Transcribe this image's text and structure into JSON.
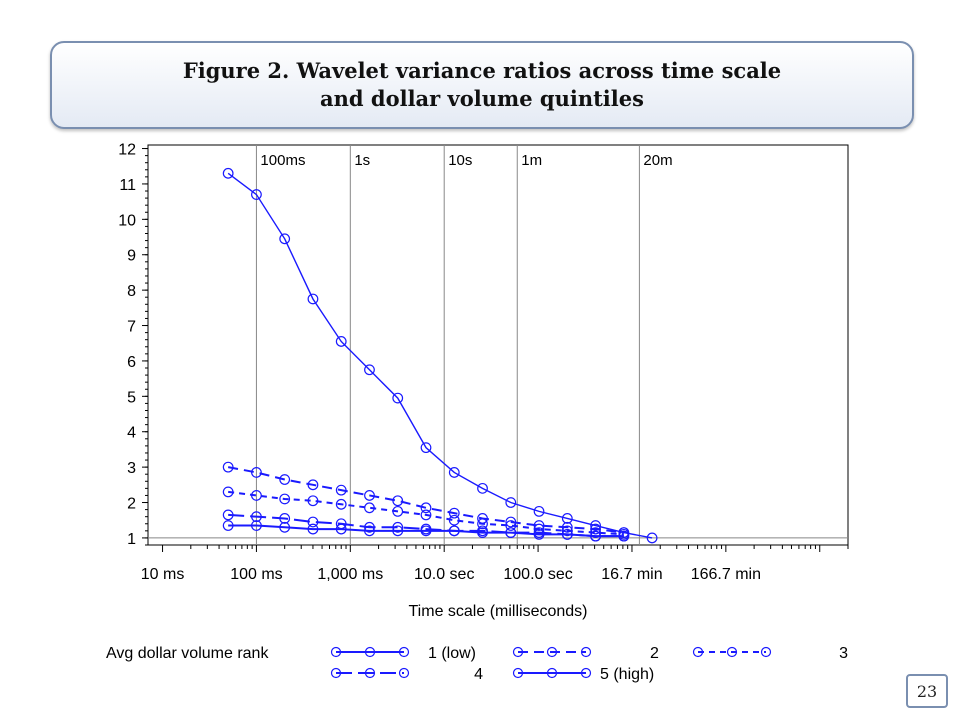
{
  "title": {
    "line1": "Figure 2. Wavelet variance ratios across time scale",
    "line2": "and dollar volume quintiles"
  },
  "page_number": "23",
  "colors": {
    "series": "#1a1aff",
    "gridline": "#888888",
    "axis": "#000000",
    "title_border": "#7a8fb0"
  },
  "chart_data": {
    "type": "line",
    "title": "Figure 2. Wavelet variance ratios across time scale and dollar volume quintiles",
    "xlabel": "Time scale (milliseconds)",
    "ylabel": "",
    "x_scale": "log10",
    "xlim": [
      7,
      200000000
    ],
    "ylim": [
      0.8,
      12.1
    ],
    "x_ticks": [
      {
        "value": 10,
        "label": "10 ms"
      },
      {
        "value": 100,
        "label": "100 ms"
      },
      {
        "value": 1000,
        "label": "1,000 ms"
      },
      {
        "value": 10000,
        "label": "10.0 sec"
      },
      {
        "value": 100000,
        "label": "100.0 sec"
      },
      {
        "value": 1000000,
        "label": "16.7 min"
      },
      {
        "value": 10000000,
        "label": "166.7 min"
      }
    ],
    "y_ticks": [
      1,
      2,
      3,
      4,
      5,
      6,
      7,
      8,
      9,
      10,
      11,
      12
    ],
    "reference_lines": [
      {
        "x": 100,
        "label": "100ms"
      },
      {
        "x": 1000,
        "label": "1s"
      },
      {
        "x": 10000,
        "label": "10s"
      },
      {
        "x": 60000,
        "label": "1m"
      },
      {
        "x": 1200000,
        "label": "20m"
      }
    ],
    "legend": {
      "title": "Avg dollar volume rank",
      "position": "bottom"
    },
    "series": [
      {
        "name": "1 (low)",
        "dash": "",
        "marker": "circle",
        "x": [
          50,
          100,
          200,
          400,
          800,
          1600,
          3200,
          6400,
          12800,
          25600,
          51200,
          102400,
          204800,
          409600,
          819200,
          1638400
        ],
        "y": [
          11.3,
          10.7,
          9.45,
          7.75,
          6.55,
          5.75,
          4.95,
          3.55,
          2.85,
          2.4,
          2.0,
          1.75,
          1.55,
          1.35,
          1.15,
          1.0
        ]
      },
      {
        "name": "2",
        "dash": "10,6",
        "marker": "circle",
        "x": [
          50,
          100,
          200,
          400,
          800,
          1600,
          3200,
          6400,
          12800,
          25600,
          51200,
          102400,
          204800,
          409600,
          819200
        ],
        "y": [
          3.0,
          2.85,
          2.65,
          2.5,
          2.35,
          2.2,
          2.05,
          1.85,
          1.7,
          1.55,
          1.45,
          1.35,
          1.3,
          1.25,
          1.15
        ]
      },
      {
        "name": "3",
        "dash": "6,5",
        "marker": "circle",
        "x": [
          50,
          100,
          200,
          400,
          800,
          1600,
          3200,
          6400,
          12800,
          25600,
          51200,
          102400,
          204800,
          409600,
          819200
        ],
        "y": [
          2.3,
          2.2,
          2.1,
          2.05,
          1.95,
          1.85,
          1.75,
          1.65,
          1.5,
          1.4,
          1.35,
          1.25,
          1.2,
          1.15,
          1.1
        ]
      },
      {
        "name": "4",
        "dash": "16,6",
        "marker": "circle",
        "x": [
          50,
          100,
          200,
          400,
          800,
          1600,
          3200,
          6400,
          12800,
          25600,
          51200,
          102400,
          204800,
          409600,
          819200
        ],
        "y": [
          1.65,
          1.6,
          1.55,
          1.45,
          1.4,
          1.3,
          1.3,
          1.25,
          1.2,
          1.2,
          1.15,
          1.15,
          1.1,
          1.05,
          1.05
        ]
      },
      {
        "name": "5 (high)",
        "dash": "",
        "marker": "circle",
        "x": [
          50,
          100,
          200,
          400,
          800,
          1600,
          3200,
          6400,
          12800,
          25600,
          51200,
          102400,
          204800,
          409600,
          819200
        ],
        "y": [
          1.35,
          1.35,
          1.3,
          1.25,
          1.25,
          1.2,
          1.2,
          1.2,
          1.2,
          1.15,
          1.15,
          1.1,
          1.1,
          1.05,
          1.05
        ]
      }
    ]
  }
}
